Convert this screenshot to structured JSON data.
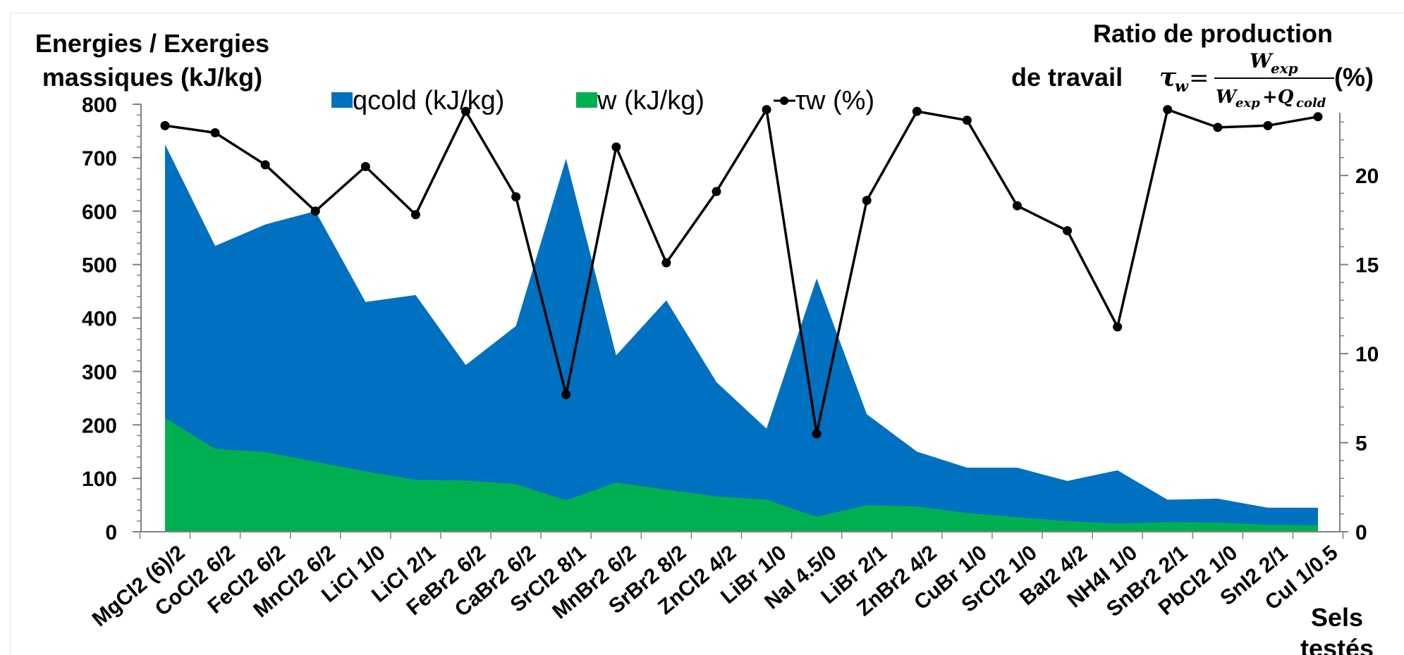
{
  "chart_data": {
    "type": "area",
    "left_axis_title": [
      "Energies / Exergies",
      "massiques (kJ/kg)"
    ],
    "right_axis_title": {
      "line1": "Ratio de production",
      "line2_prefix": "de travail ",
      "formula_lhs": "τ",
      "formula_lhs_sub": "w",
      "formula_eq": " = ",
      "numerator": "W",
      "numerator_sub": "exp",
      "denominator": "W",
      "denominator_sub": "exp",
      "denominator_plus": "+Q",
      "denominator_plus_sub": "cold",
      "suffix": " (%)"
    },
    "x_axis_title": "Sels testés",
    "y_left_range": [
      0,
      800
    ],
    "y_left_ticks": [
      "0",
      "100",
      "200",
      "300",
      "400",
      "500",
      "600",
      "700",
      "800"
    ],
    "y_right_range": [
      0,
      24.0
    ],
    "y_right_ticks": [
      "0",
      "5",
      "10",
      "15",
      "20"
    ],
    "categories": [
      "MgCl2 (6)/2",
      "CoCl2  6/2",
      "FeCl2  6/2",
      "MnCl2  6/2",
      "LiCl   1/0",
      "LiCl   2/1",
      "FeBr2  6/2",
      "CaBr2  6/2",
      "SrCl2  8/1",
      "MnBr2  6/2",
      "SrBr2  8/2",
      "ZnCl2   4/2",
      "LiBr   1/0",
      "NaI  4.5/0",
      "LiBr   2/1",
      "ZnBr2  4/2",
      "CuBr   1/0",
      "SrCl2 1/0",
      "BaI2   4/2",
      "NH4I   1/0",
      "SnBr2  2/1",
      "PbCl2  1/0",
      "SnI2   2/1",
      "CuI  1/0.5"
    ],
    "series": [
      {
        "name": "qcold (kJ/kg)",
        "axis": "left",
        "kind": "area",
        "color": "#0070c0",
        "values": [
          725,
          535,
          575,
          600,
          430,
          443,
          312,
          385,
          698,
          330,
          433,
          280,
          193,
          474,
          220,
          150,
          120,
          120,
          95,
          115,
          60,
          62,
          45,
          45
        ]
      },
      {
        "name": "w (kJ/kg)",
        "axis": "left",
        "kind": "area",
        "color": "#00b050",
        "values": [
          213,
          155,
          149,
          131,
          113,
          97,
          96,
          89,
          59,
          92,
          79,
          66,
          60,
          28,
          50,
          47,
          35,
          27,
          20,
          15,
          18,
          17,
          13,
          12
        ]
      },
      {
        "name": "τw (%)",
        "axis": "right",
        "kind": "line",
        "color": "#000000",
        "values": [
          22.8,
          22.4,
          20.6,
          18.0,
          20.5,
          17.8,
          23.6,
          18.8,
          7.7,
          21.6,
          15.1,
          19.1,
          23.7,
          5.5,
          18.6,
          23.6,
          23.1,
          18.3,
          16.9,
          11.5,
          23.7,
          22.7,
          22.8,
          23.3
        ]
      }
    ],
    "legend": {
      "placement": "top",
      "items": [
        {
          "label": "qcold (kJ/kg)",
          "symbol": "square",
          "color": "#0070c0"
        },
        {
          "label": "w (kJ/kg)",
          "symbol": "square",
          "color": "#00b050"
        },
        {
          "label": "τw (%)",
          "symbol": "line-marker",
          "color": "#000000"
        }
      ]
    },
    "grid": false
  }
}
